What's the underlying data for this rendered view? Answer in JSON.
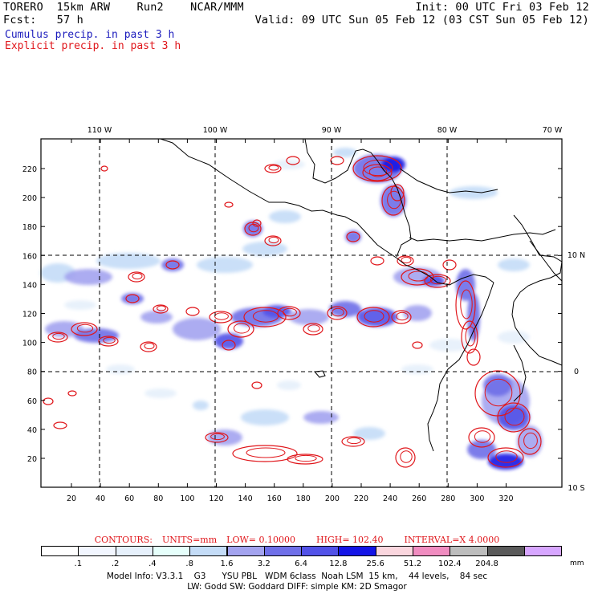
{
  "header": {
    "model": "TORERO  15km ARW    Run2    NCAR/MMM",
    "init": "Init: 00 UTC Fri 03 Feb 12",
    "fcst": "Fcst:   57 h",
    "valid": "Valid: 09 UTC Sun 05 Feb 12 (03 CST Sun 05 Feb 12)",
    "cumulus": "Cumulus precip. in past 3 h",
    "explicit": "Explicit precip. in past 3 h"
  },
  "map": {
    "lon_labels": [
      "110 W",
      "100 W",
      "90 W",
      "80 W",
      "70 W"
    ],
    "lat_labels": [
      "10 N",
      "0",
      "10 S"
    ],
    "x_ticks": [
      "20",
      "40",
      "60",
      "80",
      "100",
      "120",
      "140",
      "160",
      "180",
      "200",
      "220",
      "240",
      "260",
      "280",
      "300",
      "320"
    ],
    "y_ticks": [
      "20",
      "40",
      "60",
      "80",
      "100",
      "120",
      "140",
      "160",
      "180",
      "200",
      "220"
    ]
  },
  "contours": {
    "label": "CONTOURS:",
    "units": "UNITS=mm",
    "low": "LOW= 0.10000",
    "high": "HIGH=  102.40",
    "interval": "INTERVAL=X  4.0000"
  },
  "legend": {
    "labels": [
      ".1",
      ".2",
      ".4",
      ".8",
      "1.6",
      "3.2",
      "6.4",
      "12.8",
      "25.6",
      "51.2",
      "102.4",
      "204.8"
    ],
    "unit": "mm",
    "colors": [
      "#ffffff",
      "#f2f6ff",
      "#e6f0fb",
      "#e6fffb",
      "#c4dcf7",
      "#a3a3ef",
      "#6f6fe8",
      "#5252e8",
      "#1414e6",
      "#fad6de",
      "#f08cc0",
      "#bdbdbd",
      "#5a5a5a",
      "#d7a6ff"
    ]
  },
  "footer": {
    "line1": "Model Info: V3.3.1    G3      YSU PBL   WDM 6class  Noah LSM  15 km,    44 levels,    84 sec",
    "line2": "LW: Godd SW: Goddard DIFF: simple KM: 2D Smagor"
  }
}
